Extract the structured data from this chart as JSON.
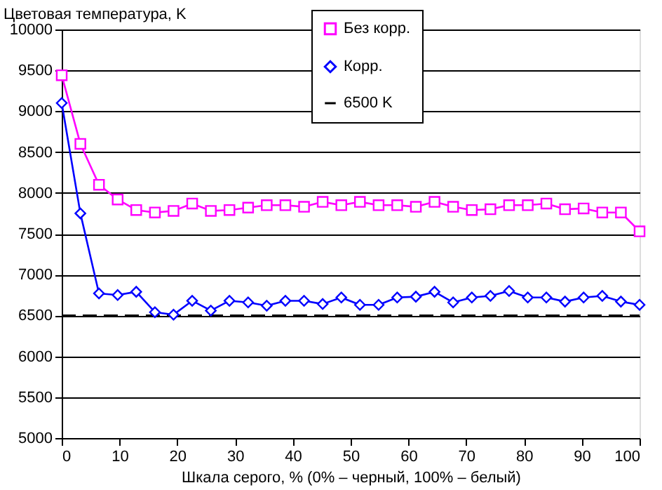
{
  "chart_data": {
    "type": "line",
    "ylabel": "Цветовая температура, K",
    "xlabel": "Шкала серого, % (0% – черный, 100% – белый)",
    "x": [
      0,
      3.23,
      6.45,
      9.68,
      12.9,
      16.13,
      19.35,
      22.58,
      25.81,
      29.03,
      32.26,
      35.48,
      38.71,
      41.94,
      45.16,
      48.39,
      51.61,
      54.84,
      58.06,
      61.29,
      64.52,
      67.74,
      70.97,
      74.19,
      77.42,
      80.65,
      83.87,
      87.1,
      90.32,
      93.55,
      96.77,
      100
    ],
    "series": [
      {
        "name": "Без корр.",
        "color": "#ff00ff",
        "marker": "square",
        "line_style": "solid",
        "values": [
          9440,
          8600,
          8100,
          7920,
          7790,
          7760,
          7780,
          7870,
          7780,
          7790,
          7820,
          7850,
          7850,
          7830,
          7890,
          7850,
          7890,
          7850,
          7850,
          7830,
          7890,
          7830,
          7790,
          7800,
          7850,
          7850,
          7870,
          7800,
          7810,
          7760,
          7760,
          7530
        ]
      },
      {
        "name": "Корр.",
        "color": "#0000ff",
        "marker": "diamond",
        "line_style": "solid",
        "values": [
          9100,
          7750,
          6770,
          6750,
          6790,
          6540,
          6510,
          6680,
          6560,
          6680,
          6660,
          6620,
          6680,
          6680,
          6640,
          6720,
          6630,
          6630,
          6720,
          6730,
          6790,
          6660,
          6720,
          6740,
          6800,
          6720,
          6720,
          6670,
          6720,
          6740,
          6670,
          6630
        ]
      },
      {
        "name": "6500 K",
        "color": "#000000",
        "marker": "none",
        "line_style": "dashed",
        "values": [
          6500,
          6500,
          6500,
          6500,
          6500,
          6500,
          6500,
          6500,
          6500,
          6500,
          6500,
          6500,
          6500,
          6500,
          6500,
          6500,
          6500,
          6500,
          6500,
          6500,
          6500,
          6500,
          6500,
          6500,
          6500,
          6500,
          6500,
          6500,
          6500,
          6500,
          6500,
          6500
        ]
      }
    ],
    "xlim": [
      0,
      100
    ],
    "xticks": [
      0,
      10,
      20,
      30,
      40,
      50,
      60,
      70,
      80,
      90,
      100
    ],
    "ylim": [
      5000,
      10000
    ],
    "yticks": [
      5000,
      5500,
      6000,
      6500,
      7000,
      7500,
      8000,
      8500,
      9000,
      9500,
      10000
    ],
    "grid": "y",
    "legend": "top right"
  }
}
